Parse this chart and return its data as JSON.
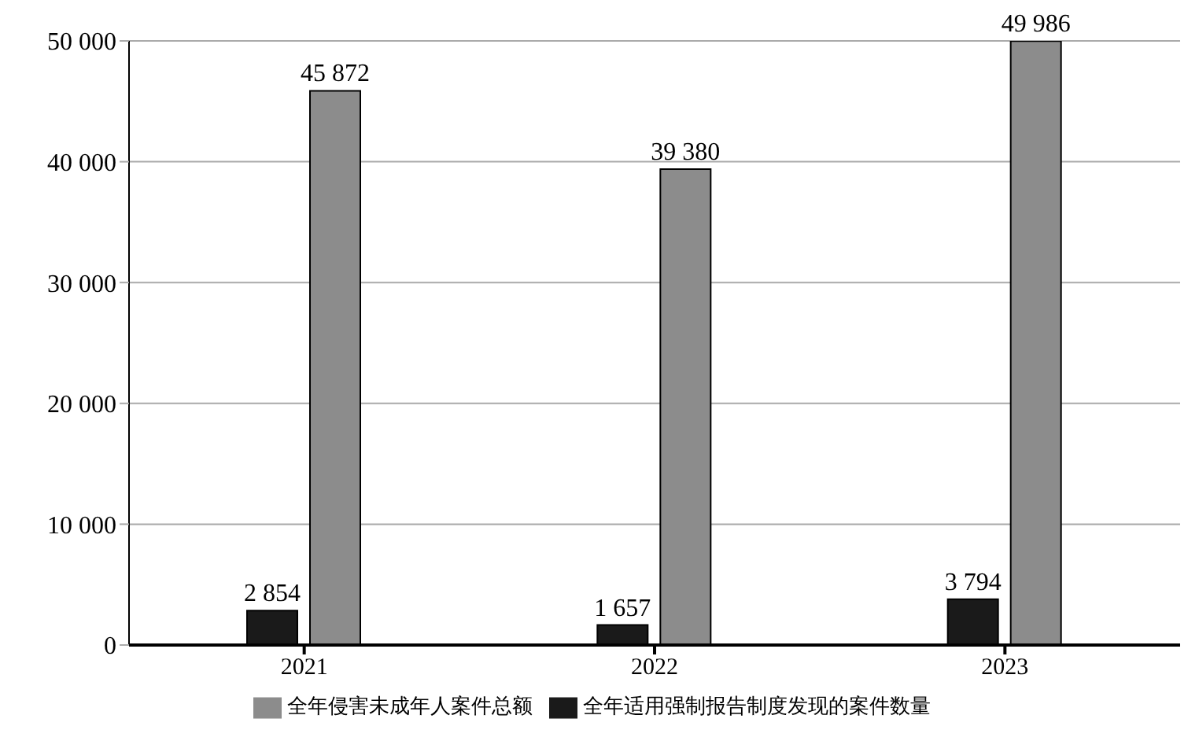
{
  "chart_data": {
    "type": "bar",
    "categories": [
      "2021",
      "2022",
      "2023"
    ],
    "series": [
      {
        "name": "全年适用强制报告制度发现的案件数量",
        "color": "#1a1a1a",
        "values": [
          2854,
          1657,
          3794
        ],
        "value_labels": [
          "2 854",
          "1 657",
          "3 794"
        ]
      },
      {
        "name": "全年侵害未成年人案件总额",
        "color": "#8c8c8c",
        "values": [
          45872,
          39380,
          49986
        ],
        "value_labels": [
          "45 872",
          "39 380",
          "49 986"
        ]
      }
    ],
    "ylim": [
      0,
      50000
    ],
    "yticks": [
      {
        "value": 0,
        "label": "0"
      },
      {
        "value": 10000,
        "label": "10 000"
      },
      {
        "value": 20000,
        "label": "20 000"
      },
      {
        "value": 30000,
        "label": "30 000"
      },
      {
        "value": 40000,
        "label": "40 000"
      },
      {
        "value": 50000,
        "label": "50 000"
      }
    ],
    "grid": "y",
    "legend": "bottom"
  }
}
